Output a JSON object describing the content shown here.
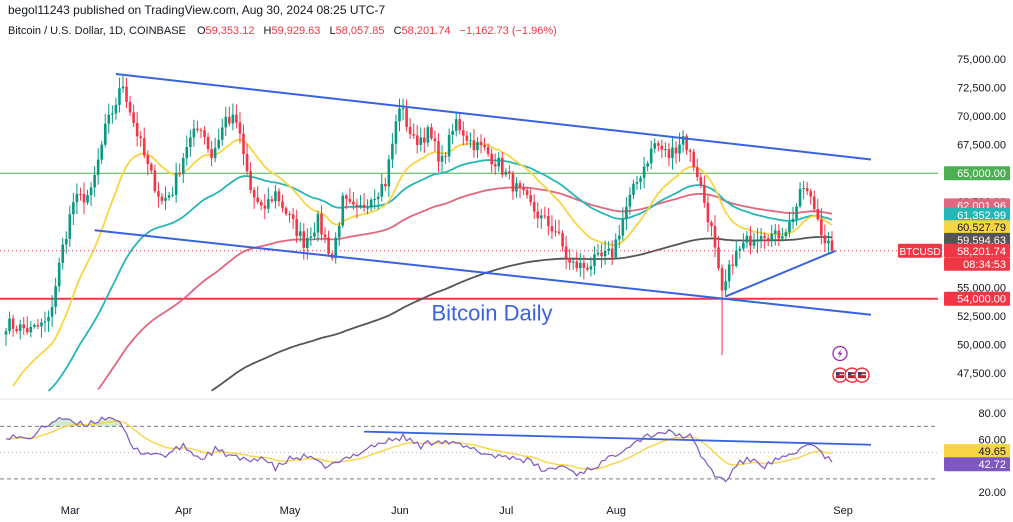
{
  "header": {
    "published": "begol11243 published on TradingView.com, Aug 30, 2024 08:25 UTC-7",
    "symbol": "Bitcoin / U.S. Dollar, 1D, COINBASE",
    "ohlc": [
      {
        "label": "O",
        "value": "59,353.12"
      },
      {
        "label": "H",
        "value": "59,929.63"
      },
      {
        "label": "L",
        "value": "58,057.85"
      },
      {
        "label": "C",
        "value": "58,201.74"
      },
      {
        "label": "",
        "value": "−1,162.73 (−1.96%)"
      }
    ]
  },
  "colors": {
    "up": "#089981",
    "down": "#f23645",
    "ema20": "#f7d544",
    "ema50": "#27b6b6",
    "ema100": "#e0677d",
    "ema200": "#555555",
    "trendline": "#3962e0",
    "level_support": "#f23645",
    "level_resistance": "#4caf50",
    "rsi": "#7e57c2",
    "rsi_ma": "#f7d544"
  },
  "icons": [
    "lightning-icon",
    "flag-icon"
  ],
  "chart_data": [
    {
      "type": "candlestick",
      "title": "Bitcoin / U.S. Dollar, 1D, COINBASE",
      "annotation": "Bitcoin Daily",
      "x_ticks": [
        "Mar",
        "Apr",
        "May",
        "Jun",
        "Jul",
        "Aug",
        "Sep"
      ],
      "y_ticks": [
        "75,000.00",
        "72,500.00",
        "70,000.00",
        "67,500.00",
        "65,000.00",
        "62,500.00",
        "60,000.00",
        "57,500.00",
        "55,000.00",
        "52,500.00",
        "50,000.00",
        "47,500.00"
      ],
      "ylim": [
        46000,
        76500
      ],
      "grid": false,
      "anchors": [
        [
          0,
          51800
        ],
        [
          7,
          51200
        ],
        [
          12,
          52000
        ],
        [
          16,
          58500
        ],
        [
          19,
          62500
        ],
        [
          24,
          63200
        ],
        [
          28,
          68800
        ],
        [
          33,
          72800
        ],
        [
          36,
          69500
        ],
        [
          40,
          65500
        ],
        [
          44,
          62500
        ],
        [
          47,
          63500
        ],
        [
          51,
          67500
        ],
        [
          55,
          69200
        ],
        [
          58,
          66500
        ],
        [
          62,
          69800
        ],
        [
          65,
          69500
        ],
        [
          69,
          63500
        ],
        [
          72,
          61600
        ],
        [
          76,
          63300
        ],
        [
          80,
          61000
        ],
        [
          84,
          59000
        ],
        [
          88,
          60800
        ],
        [
          92,
          57600
        ],
        [
          95,
          62500
        ],
        [
          99,
          61500
        ],
        [
          103,
          63000
        ],
        [
          107,
          64200
        ],
        [
          111,
          71000
        ],
        [
          115,
          67800
        ],
        [
          119,
          68500
        ],
        [
          123,
          66000
        ],
        [
          127,
          69500
        ],
        [
          131,
          67800
        ],
        [
          135,
          67000
        ],
        [
          139,
          65800
        ],
        [
          143,
          64000
        ],
        [
          147,
          62500
        ],
        [
          151,
          61000
        ],
        [
          155,
          60000
        ],
        [
          159,
          57000
        ],
        [
          163,
          56800
        ],
        [
          167,
          57400
        ],
        [
          171,
          58000
        ],
        [
          175,
          62000
        ],
        [
          179,
          65000
        ],
        [
          183,
          67600
        ],
        [
          187,
          66500
        ],
        [
          191,
          68200
        ],
        [
          195,
          65000
        ],
        [
          199,
          60000
        ],
        [
          202,
          54200
        ],
        [
          205,
          57500
        ],
        [
          209,
          59000
        ],
        [
          213,
          60000
        ],
        [
          217,
          59400
        ],
        [
          221,
          60500
        ],
        [
          225,
          63800
        ],
        [
          228,
          62000
        ],
        [
          231,
          59200
        ],
        [
          233,
          58200
        ]
      ],
      "price_badges": [
        {
          "label": "65,000.00",
          "value": 65000,
          "color": "#4caf50"
        },
        {
          "label": "62,001.96",
          "value": 62002,
          "color": "#e0677d"
        },
        {
          "label": "61,352.99",
          "value": 61353,
          "color": "#27b6b6"
        },
        {
          "label": "60,527.79",
          "value": 60528,
          "color": "#f7d544"
        },
        {
          "label": "59,594.63",
          "value": 59595,
          "color": "#555555"
        },
        {
          "label": "58,201.74",
          "value": 58202,
          "color": "#f23645"
        },
        {
          "label": "54,000.00",
          "value": 54000,
          "color": "#f23645"
        }
      ],
      "last_price_label": "BTCUSD",
      "countdown": "08:34:53",
      "levels": [
        {
          "value": 65000,
          "label": "resistance"
        },
        {
          "value": 54000,
          "label": "support"
        }
      ],
      "trendlines": [
        {
          "from": [
            31,
            73700
          ],
          "to": [
            244,
            66200
          ]
        },
        {
          "from": [
            25,
            60000
          ],
          "to": [
            244,
            52600
          ]
        },
        {
          "from": [
            203,
            54200
          ],
          "to": [
            234,
            58200
          ]
        }
      ]
    },
    {
      "type": "line",
      "title": "RSI",
      "ylim": [
        17,
        87
      ],
      "y_ticks": [
        "80.00",
        "60.00",
        "20.00"
      ],
      "band": [
        70,
        30
      ],
      "rsi_anchors": [
        [
          0,
          63
        ],
        [
          6,
          60
        ],
        [
          10,
          68
        ],
        [
          15,
          77
        ],
        [
          18,
          73
        ],
        [
          22,
          71
        ],
        [
          26,
          75
        ],
        [
          30,
          78
        ],
        [
          33,
          68
        ],
        [
          36,
          52
        ],
        [
          40,
          50
        ],
        [
          45,
          48
        ],
        [
          50,
          55
        ],
        [
          55,
          45
        ],
        [
          59,
          52
        ],
        [
          63,
          48
        ],
        [
          68,
          43
        ],
        [
          72,
          47
        ],
        [
          76,
          38
        ],
        [
          80,
          45
        ],
        [
          85,
          47
        ],
        [
          89,
          40
        ],
        [
          93,
          41
        ],
        [
          98,
          48
        ],
        [
          103,
          55
        ],
        [
          108,
          59
        ],
        [
          112,
          62
        ],
        [
          117,
          55
        ],
        [
          122,
          60
        ],
        [
          127,
          56
        ],
        [
          132,
          52
        ],
        [
          137,
          48
        ],
        [
          142,
          47
        ],
        [
          147,
          44
        ],
        [
          152,
          36
        ],
        [
          157,
          40
        ],
        [
          161,
          34
        ],
        [
          165,
          38
        ],
        [
          170,
          45
        ],
        [
          175,
          55
        ],
        [
          180,
          62
        ],
        [
          185,
          66
        ],
        [
          189,
          64
        ],
        [
          193,
          62
        ],
        [
          197,
          44
        ],
        [
          200,
          33
        ],
        [
          203,
          28
        ],
        [
          206,
          41
        ],
        [
          210,
          45
        ],
        [
          214,
          40
        ],
        [
          218,
          45
        ],
        [
          222,
          47
        ],
        [
          226,
          58
        ],
        [
          229,
          52
        ],
        [
          233,
          43
        ]
      ],
      "badges": [
        {
          "label": "49.65",
          "value": 49.65,
          "color": "#f7d544"
        },
        {
          "label": "42.72",
          "value": 42.72,
          "color": "#7e57c2"
        }
      ],
      "trendline": {
        "from": [
          101,
          66
        ],
        "to": [
          244,
          56
        ]
      }
    }
  ]
}
